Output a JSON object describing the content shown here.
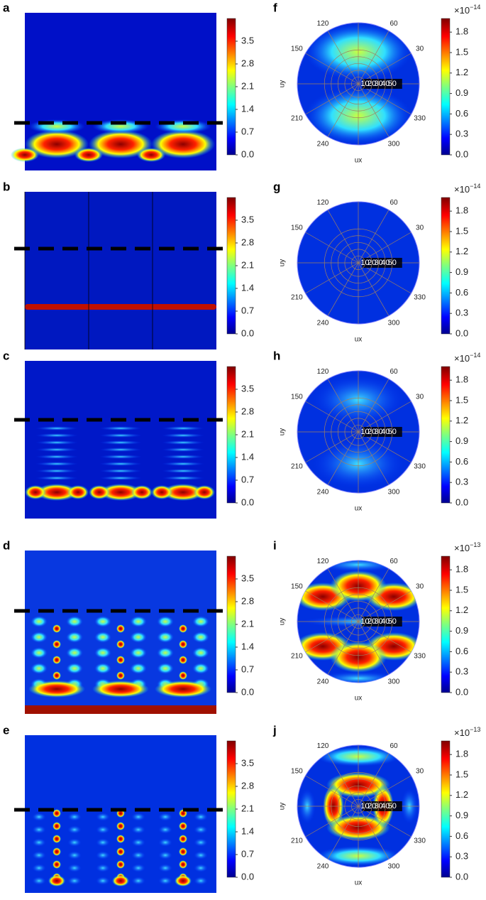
{
  "field_panels": [
    {
      "label": "a"
    },
    {
      "label": "b"
    },
    {
      "label": "c"
    },
    {
      "label": "d"
    },
    {
      "label": "e"
    }
  ],
  "field_colorbar": {
    "clim": [
      0,
      4.2
    ],
    "ticks": [
      {
        "value": 0,
        "label": "0.0"
      },
      0.7,
      1.4,
      2.1,
      2.8,
      3.5
    ]
  },
  "polar_panels": [
    {
      "label": "f",
      "scale": "×10",
      "exponent": "−14"
    },
    {
      "label": "g",
      "scale": "×10",
      "exponent": "−14"
    },
    {
      "label": "h",
      "scale": "×10",
      "exponent": "−14"
    },
    {
      "label": "i",
      "scale": "×10",
      "exponent": "−13"
    },
    {
      "label": "j",
      "scale": "×10",
      "exponent": "−13"
    }
  ],
  "polar_colorbar": {
    "clim": [
      0,
      2.0
    ],
    "ticks": [
      {
        "value": 0,
        "label": "0.0"
      },
      0.3,
      0.6,
      0.9,
      1.2,
      1.5,
      1.8
    ]
  },
  "polar_axes": {
    "x_label": "ux",
    "y_label": "uy",
    "angle_ticks": [
      120,
      60,
      150,
      30,
      210,
      330,
      240,
      300
    ],
    "rlim": [
      0,
      90
    ],
    "radial_ticks": [
      10,
      20,
      30,
      40,
      50
    ]
  }
}
